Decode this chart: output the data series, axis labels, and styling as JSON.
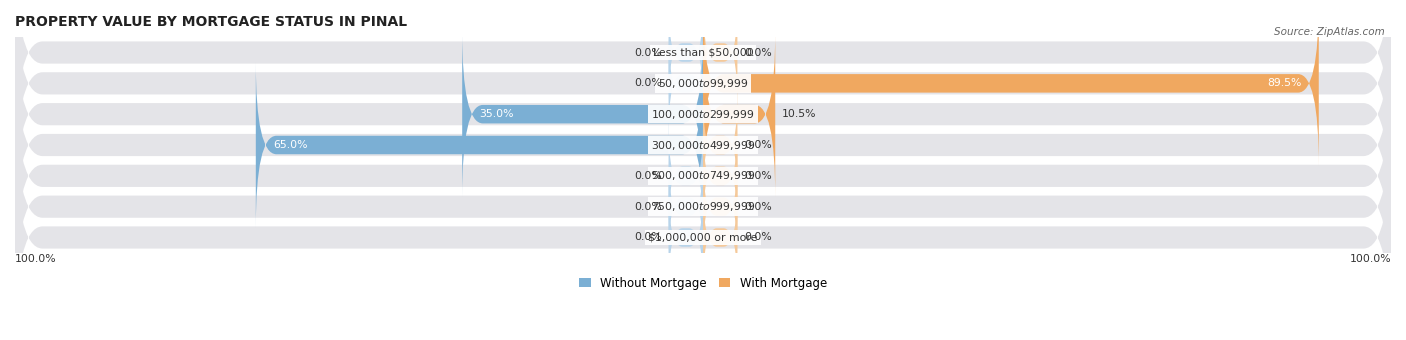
{
  "title": "PROPERTY VALUE BY MORTGAGE STATUS IN PINAL",
  "source": "Source: ZipAtlas.com",
  "categories": [
    "Less than $50,000",
    "$50,000 to $99,999",
    "$100,000 to $299,999",
    "$300,000 to $499,999",
    "$500,000 to $749,999",
    "$750,000 to $999,999",
    "$1,000,000 or more"
  ],
  "without_mortgage": [
    0.0,
    0.0,
    35.0,
    65.0,
    0.0,
    0.0,
    0.0
  ],
  "with_mortgage": [
    0.0,
    89.5,
    10.5,
    0.0,
    0.0,
    0.0,
    0.0
  ],
  "color_without": "#7bafd4",
  "color_with": "#f0a860",
  "color_without_light": "#b8d4ea",
  "color_with_light": "#f5c99a",
  "bg_row_color": "#e4e4e8",
  "title_fontsize": 10,
  "label_fontsize": 8,
  "xlim": 100,
  "stub_size": 5,
  "legend_label_without": "Without Mortgage",
  "legend_label_with": "With Mortgage"
}
